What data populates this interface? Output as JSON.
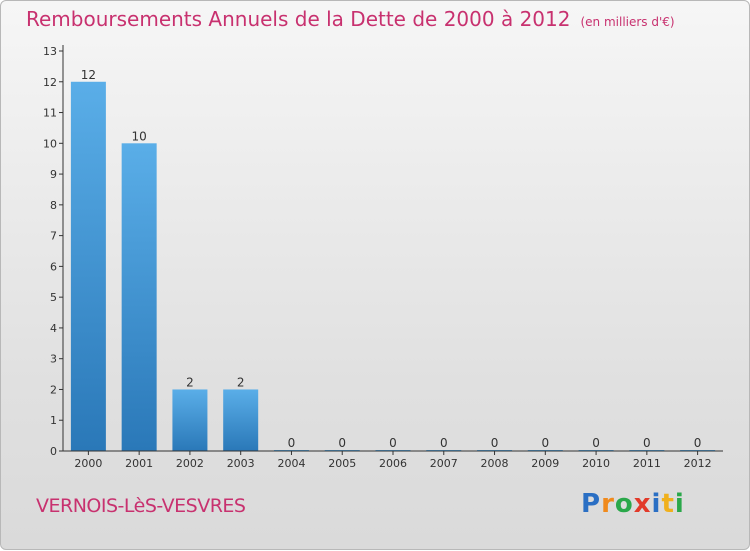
{
  "header": {
    "title": "Remboursements Annuels de la Dette de 2000 à 2012",
    "subtitle": "(en milliers d'€)"
  },
  "footer": {
    "commune": "VERNOIS-LèS-VESVRES",
    "logo": "Proxiti",
    "logo_letters": [
      {
        "char": "P",
        "color": "#2a6fc4"
      },
      {
        "char": "r",
        "color": "#f08a1c"
      },
      {
        "char": "o",
        "color": "#2aa84a"
      },
      {
        "char": "x",
        "color": "#e23a2a"
      },
      {
        "char": "i",
        "color": "#2a6fc4"
      },
      {
        "char": "t",
        "color": "#f0b01c"
      },
      {
        "char": "i",
        "color": "#2aa84a"
      }
    ]
  },
  "colors": {
    "title": "#c8316f",
    "bar_light": "#5aaee8",
    "bar_dark": "#2a78b8",
    "axis": "#333333"
  },
  "chart_data": {
    "type": "bar",
    "categories": [
      "2000",
      "2001",
      "2002",
      "2003",
      "2004",
      "2005",
      "2006",
      "2007",
      "2008",
      "2009",
      "2010",
      "2011",
      "2012"
    ],
    "values": [
      12,
      10,
      2,
      2,
      0,
      0,
      0,
      0,
      0,
      0,
      0,
      0,
      0
    ],
    "data_labels": [
      "12",
      "10",
      "2",
      "2",
      "0",
      "0",
      "0",
      "0",
      "0",
      "0",
      "0",
      "0",
      "0"
    ],
    "y_ticks": [
      0,
      1,
      2,
      3,
      4,
      5,
      6,
      7,
      8,
      9,
      10,
      11,
      12,
      13
    ],
    "ylim": [
      0,
      13
    ],
    "title": "Remboursements Annuels de la Dette de 2000 à 2012",
    "xlabel": "",
    "ylabel": "",
    "grid": false,
    "legend": "none"
  }
}
